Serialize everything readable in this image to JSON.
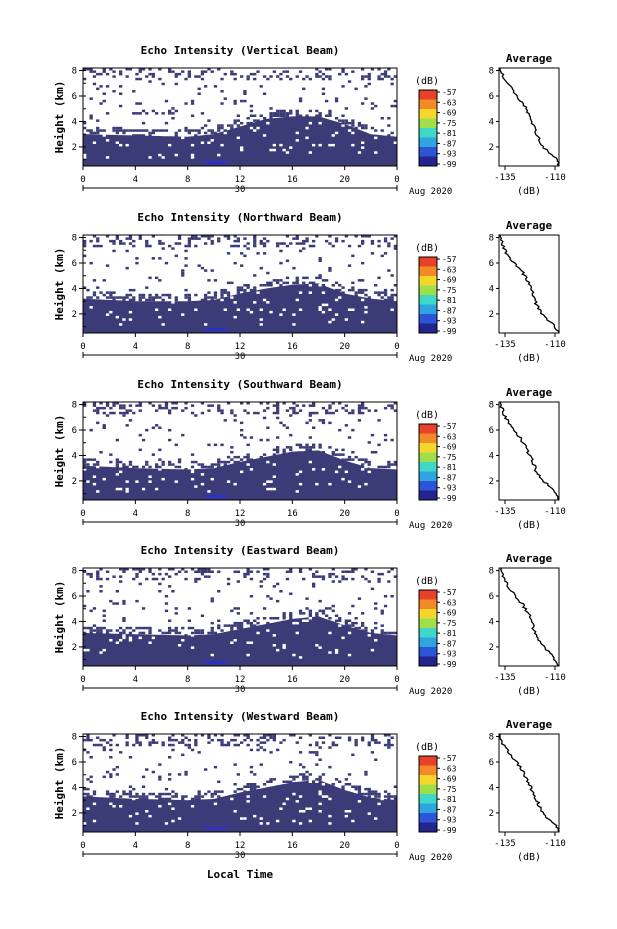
{
  "figure": {
    "xlabel": "Local Time",
    "colors": {
      "background": "#ffffff",
      "echo_fill": "#3b3b78",
      "strong_echo": "#2a30c8",
      "line": "#000000"
    }
  },
  "colorbar": {
    "unit_label": "(dB)",
    "ticks": [
      "-57",
      "-63",
      "-69",
      "-75",
      "-81",
      "-87",
      "-93",
      "-99"
    ],
    "colors": [
      "#e8412a",
      "#f28b27",
      "#f5d62a",
      "#9fe04a",
      "#3fd7c8",
      "#2fa5e0",
      "#2c54d6",
      "#24248e"
    ]
  },
  "chart_data": [
    {
      "type": "heatmap",
      "title": "Echo Intensity (Vertical Beam)",
      "ylabel": "Height (km)",
      "yticks": [
        "2",
        "4",
        "6",
        "8"
      ],
      "ylim": [
        0.5,
        8.2
      ],
      "xticks": [
        "0",
        "4",
        "8",
        "12",
        "16",
        "20",
        "0"
      ],
      "xlim": [
        0,
        24
      ],
      "date_label": "30",
      "date_suffix": "Aug 2020",
      "echo_top_km": [
        [
          0,
          3.0
        ],
        [
          4,
          2.9
        ],
        [
          8,
          2.8
        ],
        [
          10,
          3.0
        ],
        [
          12,
          3.6
        ],
        [
          14,
          4.2
        ],
        [
          16,
          4.4
        ],
        [
          18,
          4.4
        ],
        [
          20,
          3.8
        ],
        [
          22,
          3.0
        ],
        [
          24,
          2.8
        ]
      ],
      "average": {
        "title": "Average",
        "xlabel": "(dB)",
        "xticks": [
          "-135",
          "-110"
        ],
        "xlim": [
          -138,
          -108
        ],
        "yticks": [
          "2",
          "4",
          "6",
          "8"
        ],
        "ylim": [
          0.5,
          8.2
        ],
        "profile": [
          [
            -108,
            0.5
          ],
          [
            -109,
            1.0
          ],
          [
            -113,
            1.6
          ],
          [
            -116,
            2.0
          ],
          [
            -118,
            2.5
          ],
          [
            -120,
            3.5
          ],
          [
            -123,
            4.5
          ],
          [
            -125,
            5.2
          ],
          [
            -129,
            6.0
          ],
          [
            -133,
            6.8
          ],
          [
            -136,
            7.5
          ],
          [
            -137,
            8.0
          ]
        ]
      }
    },
    {
      "type": "heatmap",
      "title": "Echo Intensity (Northward Beam)",
      "ylabel": "Height (km)",
      "yticks": [
        "2",
        "4",
        "6",
        "8"
      ],
      "ylim": [
        0.5,
        8.2
      ],
      "xticks": [
        "0",
        "4",
        "8",
        "12",
        "16",
        "20",
        "0"
      ],
      "xlim": [
        0,
        24
      ],
      "date_label": "30",
      "date_suffix": "Aug 2020",
      "echo_top_km": [
        [
          0,
          3.2
        ],
        [
          4,
          3.0
        ],
        [
          8,
          3.0
        ],
        [
          10,
          3.1
        ],
        [
          12,
          3.6
        ],
        [
          14,
          4.0
        ],
        [
          16,
          4.3
        ],
        [
          18,
          4.4
        ],
        [
          20,
          3.6
        ],
        [
          22,
          3.2
        ],
        [
          24,
          3.0
        ]
      ],
      "average": {
        "title": "Average",
        "xlabel": "(dB)",
        "xticks": [
          "-135",
          "-110"
        ],
        "xlim": [
          -138,
          -108
        ],
        "yticks": [
          "2",
          "4",
          "6",
          "8"
        ],
        "ylim": [
          0.5,
          8.2
        ],
        "profile": [
          [
            -108,
            0.5
          ],
          [
            -110,
            1.0
          ],
          [
            -114,
            1.6
          ],
          [
            -117,
            2.1
          ],
          [
            -119,
            2.6
          ],
          [
            -121,
            3.5
          ],
          [
            -123,
            4.4
          ],
          [
            -126,
            5.2
          ],
          [
            -130,
            6.0
          ],
          [
            -134,
            6.6
          ],
          [
            -136,
            7.3
          ],
          [
            -137,
            8.0
          ]
        ]
      }
    },
    {
      "type": "heatmap",
      "title": "Echo Intensity (Southward Beam)",
      "ylabel": "Height (km)",
      "yticks": [
        "2",
        "4",
        "6",
        "8"
      ],
      "ylim": [
        0.5,
        8.2
      ],
      "xticks": [
        "0",
        "4",
        "8",
        "12",
        "16",
        "20",
        "0"
      ],
      "xlim": [
        0,
        24
      ],
      "date_label": "30",
      "date_suffix": "Aug 2020",
      "echo_top_km": [
        [
          0,
          3.2
        ],
        [
          4,
          3.0
        ],
        [
          8,
          2.9
        ],
        [
          10,
          3.0
        ],
        [
          12,
          3.5
        ],
        [
          14,
          3.9
        ],
        [
          16,
          4.3
        ],
        [
          18,
          4.4
        ],
        [
          20,
          3.6
        ],
        [
          22,
          3.0
        ],
        [
          24,
          2.9
        ]
      ],
      "average": {
        "title": "Average",
        "xlabel": "(dB)",
        "xticks": [
          "-135",
          "-110"
        ],
        "xlim": [
          -138,
          -108
        ],
        "yticks": [
          "2",
          "4",
          "6",
          "8"
        ],
        "ylim": [
          0.5,
          8.2
        ],
        "profile": [
          [
            -108,
            0.5
          ],
          [
            -109,
            1.0
          ],
          [
            -112,
            1.5
          ],
          [
            -116,
            2.0
          ],
          [
            -119,
            2.6
          ],
          [
            -121,
            3.5
          ],
          [
            -124,
            4.4
          ],
          [
            -127,
            5.3
          ],
          [
            -131,
            6.1
          ],
          [
            -134,
            6.8
          ],
          [
            -136,
            7.4
          ],
          [
            -137,
            8.0
          ]
        ]
      }
    },
    {
      "type": "heatmap",
      "title": "Echo Intensity (Eastward Beam)",
      "ylabel": "Height (km)",
      "yticks": [
        "2",
        "4",
        "6",
        "8"
      ],
      "ylim": [
        0.5,
        8.2
      ],
      "xticks": [
        "0",
        "4",
        "8",
        "12",
        "16",
        "20",
        "0"
      ],
      "xlim": [
        0,
        24
      ],
      "date_label": "30",
      "date_suffix": "Aug 2020",
      "echo_top_km": [
        [
          0,
          3.1
        ],
        [
          4,
          3.0
        ],
        [
          8,
          2.9
        ],
        [
          10,
          3.0
        ],
        [
          12,
          3.4
        ],
        [
          14,
          3.8
        ],
        [
          16,
          4.2
        ],
        [
          18,
          4.4
        ],
        [
          20,
          3.7
        ],
        [
          22,
          3.1
        ],
        [
          24,
          2.9
        ]
      ],
      "average": {
        "title": "Average",
        "xlabel": "(dB)",
        "xticks": [
          "-135",
          "-110"
        ],
        "xlim": [
          -138,
          -108
        ],
        "yticks": [
          "2",
          "4",
          "6",
          "8"
        ],
        "ylim": [
          0.5,
          8.2
        ],
        "profile": [
          [
            -108,
            0.5
          ],
          [
            -110,
            1.0
          ],
          [
            -113,
            1.6
          ],
          [
            -116,
            2.1
          ],
          [
            -119,
            2.7
          ],
          [
            -121,
            3.6
          ],
          [
            -123,
            4.5
          ],
          [
            -126,
            5.3
          ],
          [
            -130,
            6.0
          ],
          [
            -133,
            6.7
          ],
          [
            -136,
            7.4
          ],
          [
            -137,
            8.0
          ]
        ]
      }
    },
    {
      "type": "heatmap",
      "title": "Echo Intensity (Westward Beam)",
      "ylabel": "Height (km)",
      "yticks": [
        "2",
        "4",
        "6",
        "8"
      ],
      "ylim": [
        0.5,
        8.2
      ],
      "xticks": [
        "0",
        "4",
        "8",
        "12",
        "16",
        "20",
        "0"
      ],
      "xlim": [
        0,
        24
      ],
      "date_label": "30",
      "date_suffix": "Aug 2020",
      "echo_top_km": [
        [
          0,
          3.3
        ],
        [
          4,
          3.1
        ],
        [
          8,
          3.0
        ],
        [
          10,
          3.1
        ],
        [
          12,
          3.6
        ],
        [
          14,
          4.0
        ],
        [
          16,
          4.4
        ],
        [
          18,
          4.6
        ],
        [
          20,
          3.8
        ],
        [
          22,
          3.2
        ],
        [
          24,
          3.0
        ]
      ],
      "average": {
        "title": "Average",
        "xlabel": "(dB)",
        "xticks": [
          "-135",
          "-110"
        ],
        "xlim": [
          -138,
          -108
        ],
        "yticks": [
          "2",
          "4",
          "6",
          "8"
        ],
        "ylim": [
          0.5,
          8.2
        ],
        "profile": [
          [
            -108,
            0.5
          ],
          [
            -109,
            1.0
          ],
          [
            -113,
            1.5
          ],
          [
            -116,
            2.0
          ],
          [
            -118,
            2.6
          ],
          [
            -121,
            3.5
          ],
          [
            -123,
            4.3
          ],
          [
            -126,
            5.2
          ],
          [
            -129,
            6.0
          ],
          [
            -133,
            6.7
          ],
          [
            -136,
            7.4
          ],
          [
            -137,
            8.0
          ]
        ]
      }
    }
  ]
}
